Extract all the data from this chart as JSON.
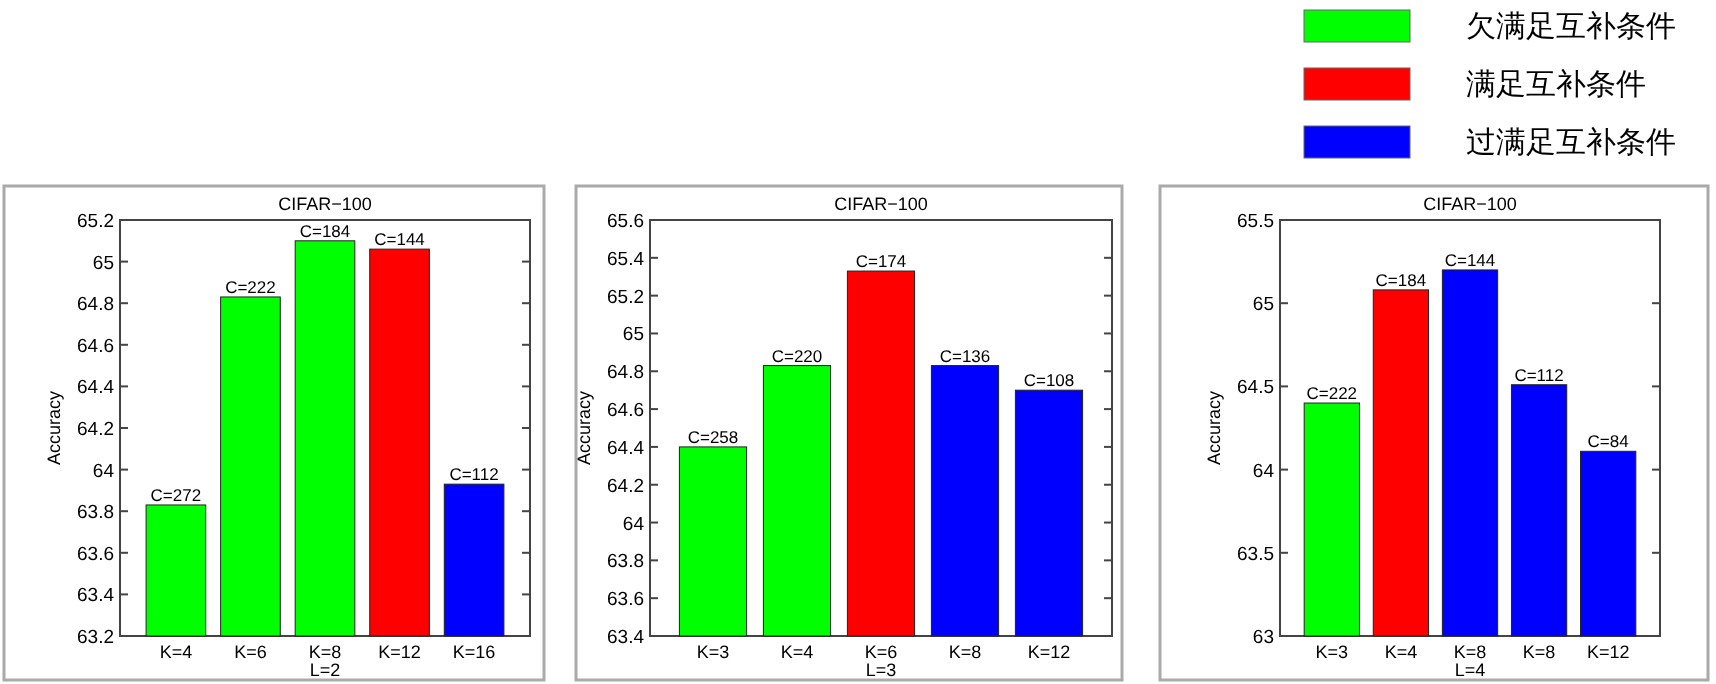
{
  "chart_data": [
    {
      "type": "bar",
      "title": "CIFAR−100",
      "xlabel": "L=2",
      "ylabel": "Accuracy",
      "categories": [
        "K=4",
        "K=6",
        "K=8",
        "K=12",
        "K=16"
      ],
      "ylim": [
        63.2,
        65.2
      ],
      "yticks": [
        63.2,
        63.4,
        63.6,
        63.8,
        64,
        64.2,
        64.4,
        64.6,
        64.8,
        65,
        65.2
      ],
      "legend": false,
      "series": [
        {
          "color": "#00ff00",
          "values": [
            63.83,
            64.83,
            65.1,
            null,
            null
          ]
        },
        {
          "color": "#ff0000",
          "values": [
            null,
            null,
            null,
            65.06,
            null
          ]
        },
        {
          "color": "#0000ff",
          "values": [
            null,
            null,
            null,
            null,
            63.93
          ]
        }
      ],
      "annotations": [
        {
          "text": "C=272",
          "x": "K=4",
          "y": 63.83
        },
        {
          "text": "C=222",
          "x": "K=6",
          "y": 64.83
        },
        {
          "text": "C=184",
          "x": "K=8",
          "y": 65.1
        },
        {
          "text": "C=144",
          "x": "K=12",
          "y": 65.06
        },
        {
          "text": "C=112",
          "x": "K=16",
          "y": 63.93
        }
      ]
    },
    {
      "type": "bar",
      "title": "CIFAR−100",
      "xlabel": "L=3",
      "ylabel": "Accuracy",
      "categories": [
        "K=3",
        "K=4",
        "K=6",
        "K=8",
        "K=12"
      ],
      "ylim": [
        63.4,
        65.6
      ],
      "yticks": [
        63.4,
        63.6,
        63.8,
        64,
        64.2,
        64.4,
        64.6,
        64.8,
        65,
        65.2,
        65.4,
        65.6
      ],
      "legend": false,
      "series": [
        {
          "color": "#00ff00",
          "values": [
            64.4,
            64.83,
            null,
            null,
            null
          ]
        },
        {
          "color": "#ff0000",
          "values": [
            null,
            null,
            65.33,
            null,
            null
          ]
        },
        {
          "color": "#0000ff",
          "values": [
            null,
            null,
            null,
            64.83,
            64.7
          ]
        }
      ],
      "annotations": [
        {
          "text": "C=258",
          "x": "K=3",
          "y": 64.4
        },
        {
          "text": "C=220",
          "x": "K=4",
          "y": 64.83
        },
        {
          "text": "C=174",
          "x": "K=6",
          "y": 65.33
        },
        {
          "text": "C=136",
          "x": "K=8",
          "y": 64.83
        },
        {
          "text": "C=108",
          "x": "K=12",
          "y": 64.7
        }
      ]
    },
    {
      "type": "bar",
      "title": "CIFAR−100",
      "xlabel": "L=4",
      "ylabel": "Accuracy",
      "categories": [
        "K=3",
        "K=4",
        "K=8",
        "K=8",
        "K=12"
      ],
      "ylim": [
        63,
        65.5
      ],
      "yticks": [
        63,
        63.5,
        64,
        64.5,
        65,
        65.5
      ],
      "legend": "top",
      "series": [
        {
          "name": "欠满足互补条件",
          "color": "#00ff00",
          "values": [
            64.4,
            null,
            null,
            null,
            null
          ]
        },
        {
          "name": "满足互补条件",
          "color": "#ff0000",
          "values": [
            null,
            65.08,
            null,
            null,
            null
          ]
        },
        {
          "name": "过满足互补条件",
          "color": "#0000ff",
          "values": [
            null,
            null,
            65.2,
            64.51,
            64.11
          ]
        }
      ],
      "annotations": [
        {
          "text": "C=222",
          "x": "K=3",
          "y": 64.4
        },
        {
          "text": "C=184",
          "x": "K=4",
          "y": 65.08
        },
        {
          "text": "C=144",
          "x": "K=8",
          "y": 65.2
        },
        "C=112",
        {
          "text": "C=84",
          "x": "K=12",
          "y": 64.11
        }
      ]
    }
  ]
}
